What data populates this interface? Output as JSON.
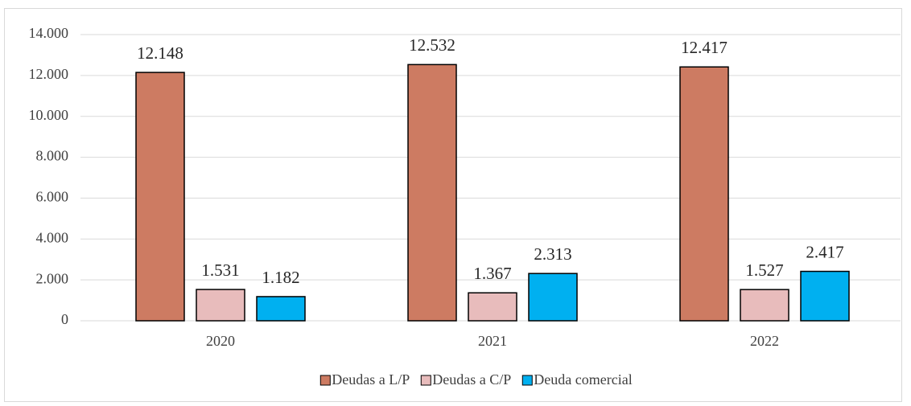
{
  "chart_data": {
    "type": "bar",
    "categories": [
      "2020",
      "2021",
      "2022"
    ],
    "series": [
      {
        "name": "Deudas a L/P",
        "color": "#cd7b62",
        "values": [
          12148,
          12532,
          12417
        ],
        "value_labels": [
          "12.148",
          "12.532",
          "12.417"
        ]
      },
      {
        "name": "Deudas a C/P",
        "color": "#e8bcbc",
        "values": [
          1531,
          1367,
          1527
        ],
        "value_labels": [
          "1.531",
          "1.367",
          "1.527"
        ]
      },
      {
        "name": "Deuda comercial",
        "color": "#00b0f0",
        "values": [
          1182,
          2313,
          2417
        ],
        "value_labels": [
          "1.182",
          "2.313",
          "2.417"
        ]
      }
    ],
    "ylim": [
      0,
      14000
    ],
    "yticks": [
      0,
      {
        "value": 2000,
        "label": "2.000"
      },
      {
        "value": 4000,
        "label": "4.000"
      },
      {
        "value": 6000,
        "label": "6.000"
      },
      {
        "value": 8000,
        "label": "8.000"
      },
      {
        "value": 10000,
        "label": "10.000"
      },
      {
        "value": 12000,
        "label": "12.000"
      },
      {
        "value": 14000,
        "label": "14.000"
      }
    ],
    "grid": true,
    "legend": "bottom"
  }
}
